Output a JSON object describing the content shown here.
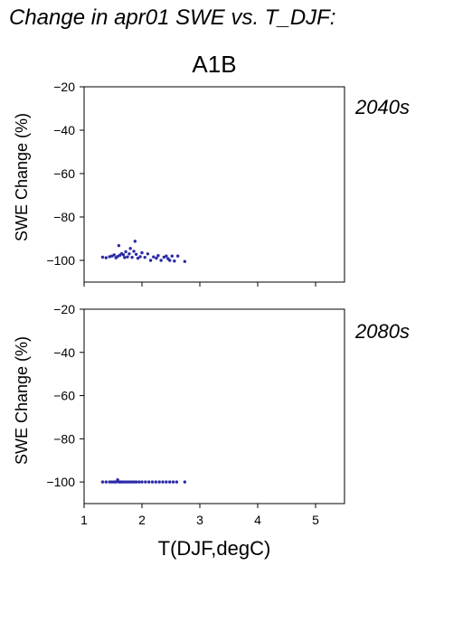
{
  "page": {
    "title": "Change in apr01 SWE vs. T_DJF:",
    "scenario": "A1B",
    "x_axis_label": "T(DJF,degC)"
  },
  "colors": {
    "points": "#2a2aa8",
    "axes": "#000000",
    "period_label": "#2a2aa8"
  },
  "chart_data": [
    {
      "type": "scatter",
      "period_label": "2040s",
      "ylabel": "SWE Change (%)",
      "xlim": [
        1,
        5.5
      ],
      "ylim": [
        -110,
        -20
      ],
      "xticks": [
        1,
        2,
        3,
        4,
        5
      ],
      "yticks": [
        -20,
        -40,
        -60,
        -80,
        -100
      ],
      "show_x_tick_labels": false,
      "grid": false,
      "points": [
        [
          1.32,
          -98.5
        ],
        [
          1.38,
          -98.8
        ],
        [
          1.44,
          -98.3
        ],
        [
          1.48,
          -98.0
        ],
        [
          1.52,
          -97.5
        ],
        [
          1.55,
          -98.8
        ],
        [
          1.58,
          -98.2
        ],
        [
          1.6,
          -93.2
        ],
        [
          1.62,
          -97.6
        ],
        [
          1.65,
          -96.9
        ],
        [
          1.68,
          -97.4
        ],
        [
          1.7,
          -98.7
        ],
        [
          1.72,
          -96.0
        ],
        [
          1.75,
          -98.4
        ],
        [
          1.78,
          -97.0
        ],
        [
          1.8,
          -94.5
        ],
        [
          1.83,
          -98.6
        ],
        [
          1.86,
          -95.8
        ],
        [
          1.88,
          -91.2
        ],
        [
          1.9,
          -97.2
        ],
        [
          1.93,
          -99.0
        ],
        [
          1.97,
          -98.3
        ],
        [
          2.0,
          -96.5
        ],
        [
          2.05,
          -98.6
        ],
        [
          2.1,
          -97.0
        ],
        [
          2.15,
          -100.0
        ],
        [
          2.2,
          -98.4
        ],
        [
          2.25,
          -99.0
        ],
        [
          2.28,
          -97.8
        ],
        [
          2.33,
          -100.0
        ],
        [
          2.38,
          -98.5
        ],
        [
          2.42,
          -98.0
        ],
        [
          2.45,
          -99.2
        ],
        [
          2.48,
          -100.0
        ],
        [
          2.52,
          -98.0
        ],
        [
          2.56,
          -100.3
        ],
        [
          2.62,
          -98.0
        ],
        [
          2.74,
          -100.5
        ]
      ]
    },
    {
      "type": "scatter",
      "period_label": "2080s",
      "ylabel": "SWE Change (%)",
      "xlim": [
        1,
        5.5
      ],
      "ylim": [
        -110,
        -20
      ],
      "xticks": [
        1,
        2,
        3,
        4,
        5
      ],
      "xtick_labels": [
        "1",
        "2",
        "3",
        "4",
        "5"
      ],
      "yticks": [
        -20,
        -40,
        -60,
        -80,
        -100
      ],
      "show_x_tick_labels": true,
      "grid": false,
      "points": [
        [
          1.32,
          -100.0
        ],
        [
          1.38,
          -100.0
        ],
        [
          1.44,
          -100.0
        ],
        [
          1.48,
          -100.0
        ],
        [
          1.52,
          -100.0
        ],
        [
          1.55,
          -100.0
        ],
        [
          1.58,
          -99.0
        ],
        [
          1.6,
          -100.0
        ],
        [
          1.63,
          -100.0
        ],
        [
          1.66,
          -100.0
        ],
        [
          1.7,
          -100.0
        ],
        [
          1.74,
          -100.0
        ],
        [
          1.78,
          -100.0
        ],
        [
          1.82,
          -100.0
        ],
        [
          1.86,
          -100.0
        ],
        [
          1.9,
          -100.0
        ],
        [
          1.95,
          -100.0
        ],
        [
          2.0,
          -100.0
        ],
        [
          2.06,
          -100.0
        ],
        [
          2.12,
          -100.0
        ],
        [
          2.18,
          -100.0
        ],
        [
          2.24,
          -100.0
        ],
        [
          2.3,
          -100.0
        ],
        [
          2.36,
          -100.0
        ],
        [
          2.42,
          -100.0
        ],
        [
          2.48,
          -100.0
        ],
        [
          2.54,
          -100.0
        ],
        [
          2.6,
          -100.0
        ],
        [
          2.74,
          -100.0
        ]
      ]
    }
  ]
}
